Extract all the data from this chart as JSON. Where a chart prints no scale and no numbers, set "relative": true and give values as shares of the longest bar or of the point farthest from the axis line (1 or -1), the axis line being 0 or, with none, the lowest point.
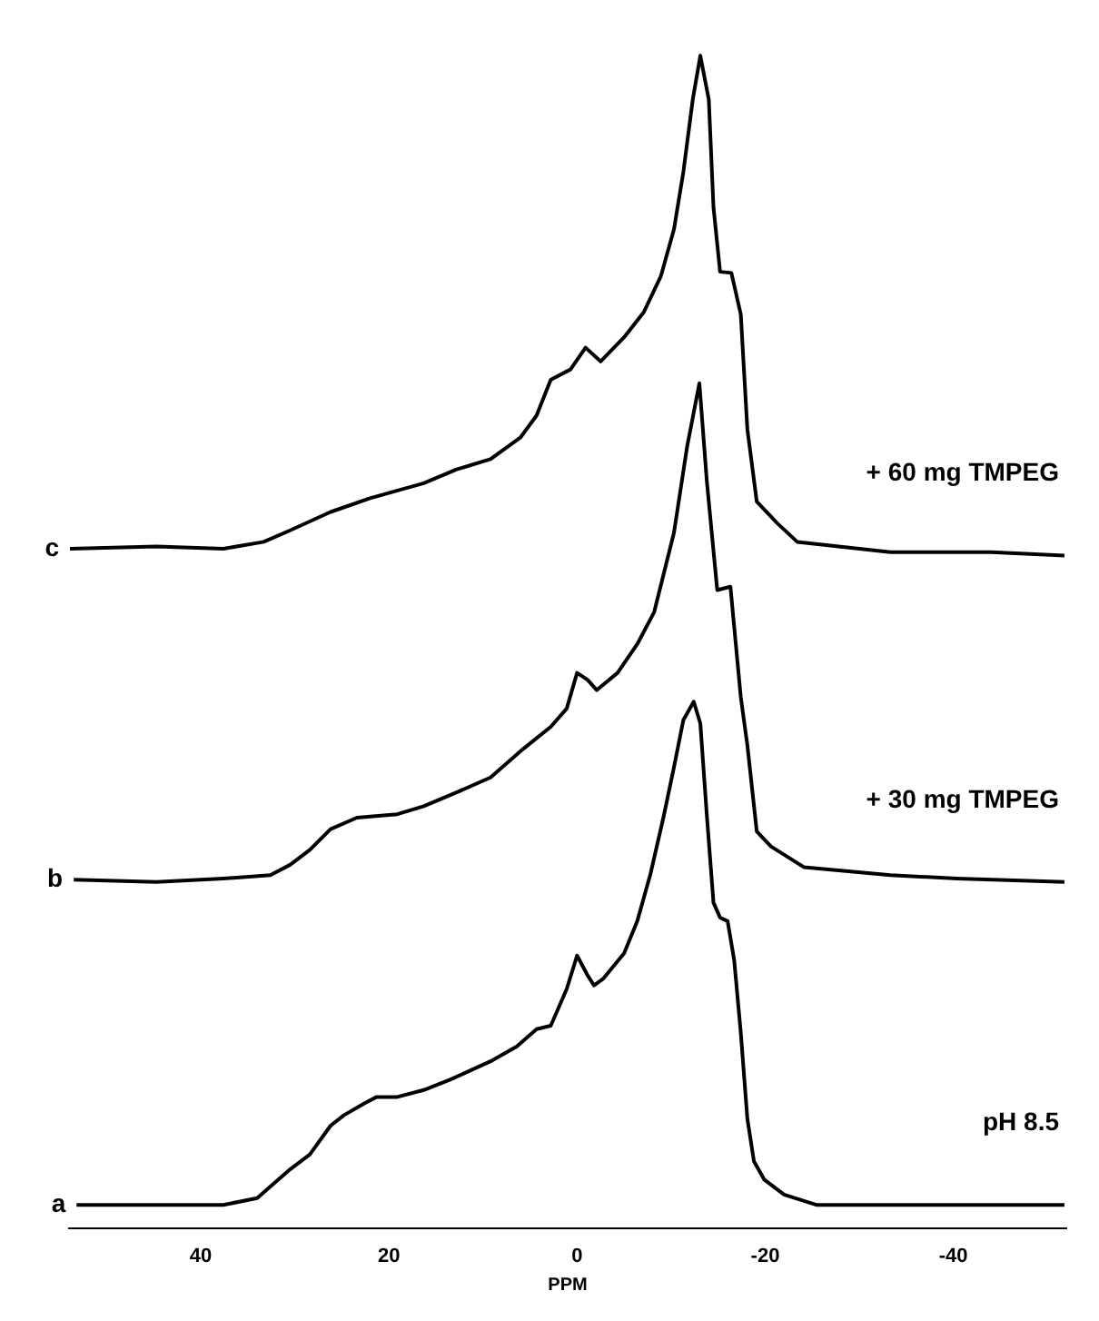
{
  "chart_data": {
    "type": "line",
    "relative": true,
    "xlabel": "PPM",
    "xlim": [
      54,
      -52
    ],
    "xticks": [
      40,
      20,
      0,
      -20,
      -40
    ],
    "series": [
      {
        "name": "a",
        "color": "#000000",
        "x": [
          53.2,
          44.7,
          37.6,
          34.0,
          32.6,
          30.5,
          28.4,
          26.2,
          24.8,
          22.7,
          21.3,
          19.1,
          16.3,
          13.5,
          9.2,
          6.4,
          4.3,
          2.8,
          2.1,
          1.1,
          0,
          -1.1,
          -1.8,
          -2.8,
          -5.0,
          -6.4,
          -7.8,
          -9.2,
          -10.3,
          -11.3,
          -12.4,
          -13.1,
          -13.8,
          -14.5,
          -15.2,
          -16.0,
          -16.7,
          -17.4,
          -18.1,
          -18.8,
          -19.9,
          -22.0,
          -25.5,
          -33.3,
          -40.4,
          -51.8
        ],
        "values": [
          0,
          0,
          0,
          0.006,
          0.016,
          0.031,
          0.044,
          0.069,
          0.078,
          0.088,
          0.094,
          0.094,
          0.1,
          0.109,
          0.125,
          0.138,
          0.153,
          0.156,
          0.169,
          0.188,
          0.217,
          0.2,
          0.191,
          0.197,
          0.219,
          0.247,
          0.288,
          0.338,
          0.381,
          0.422,
          0.438,
          0.419,
          0.338,
          0.263,
          0.25,
          0.247,
          0.213,
          0.15,
          0.075,
          0.038,
          0.022,
          0.009,
          0,
          0,
          0,
          0
        ]
      },
      {
        "name": "b",
        "color": "#000000",
        "x": [
          53.5,
          44.7,
          37.6,
          32.6,
          30.5,
          28.4,
          26.2,
          23.4,
          19.1,
          16.3,
          12.8,
          9.2,
          5.7,
          2.8,
          1.1,
          0,
          -1.1,
          -2.1,
          -4.3,
          -6.4,
          -8.2,
          -10.3,
          -11.7,
          -13.0,
          -13.8,
          -14.9,
          -16.3,
          -17.4,
          -18.1,
          -19.1,
          -20.6,
          -24.1,
          -33.3,
          -40.4,
          -51.8
        ],
        "values": [
          0.283,
          0.281,
          0.284,
          0.287,
          0.296,
          0.309,
          0.327,
          0.337,
          0.34,
          0.347,
          0.359,
          0.372,
          0.397,
          0.416,
          0.432,
          0.463,
          0.457,
          0.448,
          0.463,
          0.488,
          0.516,
          0.585,
          0.66,
          0.715,
          0.629,
          0.535,
          0.538,
          0.442,
          0.4,
          0.325,
          0.312,
          0.294,
          0.287,
          0.284,
          0.281
        ]
      },
      {
        "name": "c",
        "color": "#000000",
        "x": [
          53.9,
          44.7,
          37.6,
          33.3,
          30.5,
          26.2,
          22.0,
          16.3,
          12.8,
          9.2,
          6.0,
          4.3,
          2.8,
          0.7,
          -0.9,
          -2.5,
          -5.0,
          -7.1,
          -8.9,
          -10.3,
          -11.3,
          -12.3,
          -13.1,
          -14.0,
          -14.5,
          -15.2,
          -16.4,
          -17.4,
          -18.1,
          -19.1,
          -21.3,
          -23.4,
          -33.3,
          -44.0,
          -51.8
        ],
        "values": [
          0.571,
          0.573,
          0.571,
          0.577,
          0.587,
          0.603,
          0.615,
          0.628,
          0.64,
          0.649,
          0.668,
          0.687,
          0.718,
          0.727,
          0.746,
          0.734,
          0.755,
          0.777,
          0.808,
          0.849,
          0.899,
          0.962,
          1,
          0.962,
          0.868,
          0.812,
          0.811,
          0.775,
          0.675,
          0.612,
          0.593,
          0.577,
          0.568,
          0.568,
          0.565
        ]
      }
    ],
    "annotations": [
      "+ 60 mg TMPEG",
      "+ 30 mg TMPEG",
      "pH 8.5"
    ]
  }
}
